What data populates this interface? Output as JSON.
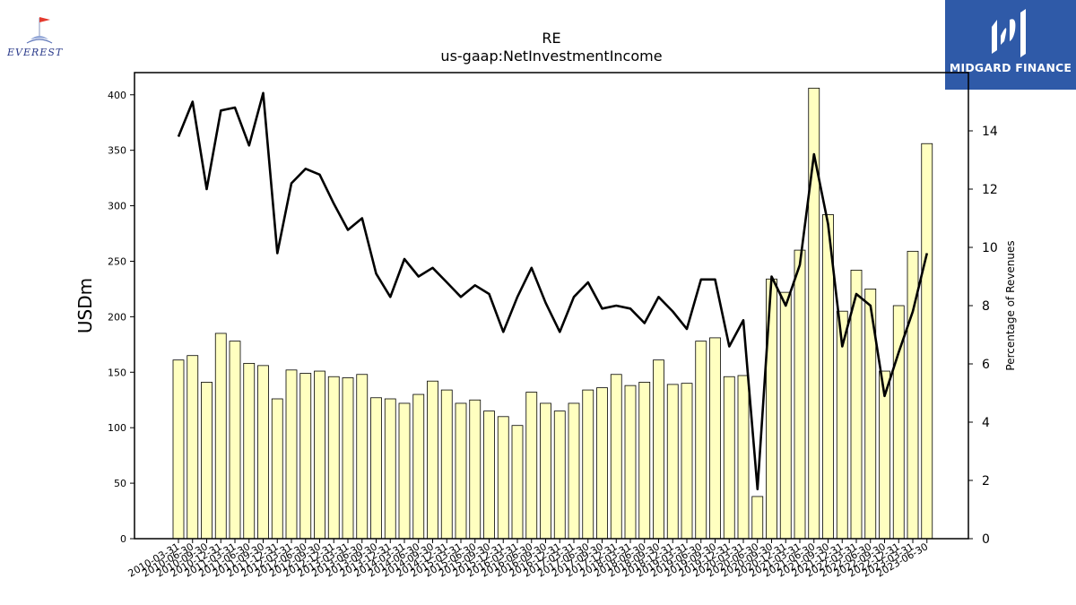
{
  "logos": {
    "left_brand": "EVEREST",
    "right_brand": "MIDGARD FINANCE",
    "right_bg_color": "#2f5aa8"
  },
  "chart_data": {
    "type": "bar",
    "title": "RE",
    "subtitle": "us-gaap:NetInvestmentIncome",
    "ylabel": "USDm",
    "y2label": "Percentage of Revenues",
    "ylim": [
      0,
      420
    ],
    "y2lim": [
      0,
      16
    ],
    "yticks": [
      0,
      50,
      100,
      150,
      200,
      250,
      300,
      350,
      400
    ],
    "y2ticks": [
      0,
      2,
      4,
      6,
      8,
      10,
      12,
      14
    ],
    "grid": false,
    "bar_color": "#ffffc0",
    "line_color": "#000000",
    "categories": [
      "2010-03-31",
      "2010-06-30",
      "2010-09-30",
      "2010-12-31",
      "2011-03-31",
      "2011-06-30",
      "2011-09-30",
      "2011-12-31",
      "2012-03-31",
      "2012-06-30",
      "2012-09-30",
      "2012-12-31",
      "2013-03-31",
      "2013-06-30",
      "2013-09-30",
      "2013-12-31",
      "2014-03-31",
      "2014-06-30",
      "2014-09-30",
      "2014-12-31",
      "2015-03-31",
      "2015-06-30",
      "2015-09-30",
      "2015-12-31",
      "2016-03-31",
      "2016-06-30",
      "2016-09-30",
      "2016-12-31",
      "2017-03-31",
      "2017-06-30",
      "2017-09-30",
      "2017-12-31",
      "2018-03-31",
      "2018-06-30",
      "2018-09-30",
      "2018-12-31",
      "2019-03-31",
      "2019-06-30",
      "2019-09-30",
      "2019-12-31",
      "2020-03-31",
      "2020-06-30",
      "2020-09-30",
      "2020-12-31",
      "2021-03-31",
      "2021-06-30",
      "2021-09-30",
      "2021-12-31",
      "2022-03-31",
      "2022-06-30",
      "2022-09-30",
      "2022-12-31",
      "2023-03-31",
      "2023-06-30"
    ],
    "series": [
      {
        "axis": "left",
        "kind": "bar",
        "values": [
          161,
          165,
          141,
          185,
          178,
          158,
          156,
          126,
          152,
          149,
          151,
          146,
          145,
          148,
          127,
          126,
          122,
          130,
          142,
          134,
          122,
          125,
          115,
          110,
          102,
          132,
          122,
          115,
          122,
          134,
          136,
          148,
          138,
          141,
          161,
          139,
          140,
          178,
          181,
          146,
          147,
          38,
          234,
          222,
          260,
          406,
          292,
          205,
          242,
          225,
          151,
          210,
          259,
          356
        ]
      },
      {
        "axis": "right",
        "kind": "line",
        "values": [
          13.8,
          15.0,
          12.0,
          14.7,
          14.8,
          13.5,
          15.3,
          9.8,
          12.2,
          12.7,
          12.5,
          11.5,
          10.6,
          11.0,
          9.1,
          8.3,
          9.6,
          9.0,
          9.3,
          8.8,
          8.3,
          8.7,
          8.4,
          7.1,
          8.3,
          9.3,
          8.1,
          7.1,
          8.3,
          8.8,
          7.9,
          8.0,
          7.9,
          7.4,
          8.3,
          7.8,
          7.2,
          8.9,
          8.9,
          6.6,
          7.5,
          1.7,
          9.0,
          8.0,
          9.4,
          13.2,
          10.8,
          6.6,
          8.4,
          8.0,
          4.9,
          6.4,
          7.8,
          9.8
        ]
      }
    ]
  }
}
